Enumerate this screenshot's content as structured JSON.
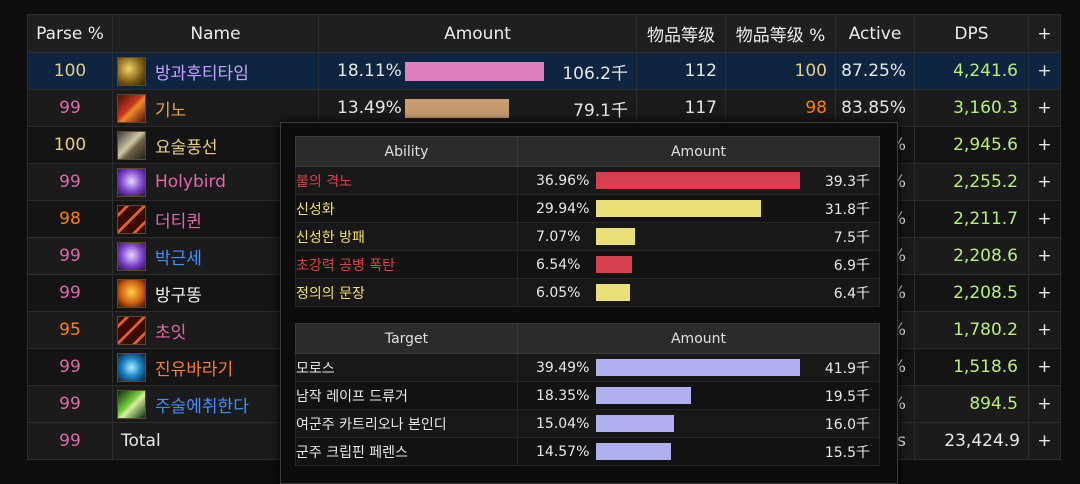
{
  "columns": {
    "parse": "Parse %",
    "name": "Name",
    "amount": "Amount",
    "ilvl": "物品等级",
    "ilvl_pct": "物品等级 %",
    "active": "Active",
    "dps": "DPS",
    "add": "+"
  },
  "rows": [
    {
      "parse": "100",
      "name": "방과후티타임",
      "pct": "18.11%",
      "bar": 0.966,
      "amount": "106.2千",
      "ilvl": "112",
      "ilvl_pct": "100",
      "active": "87.25%",
      "dps": "4,241.6",
      "plus": "+",
      "icon": "class-icon",
      "icon_style": "gold",
      "name_color": "#c8a0ff",
      "parse_color": "#e5cc80",
      "ilvl_pct_color": "#e5cc80",
      "bar_color": "#e07fbe"
    },
    {
      "parse": "99",
      "name": "기노",
      "pct": "13.49%",
      "bar": 0.72,
      "amount": "79.1千",
      "ilvl": "117",
      "ilvl_pct": "98",
      "active": "83.85%",
      "dps": "3,160.3",
      "plus": "+",
      "icon": "class-icon",
      "icon_style": "red",
      "name_color": "#e0a050",
      "parse_color": "#e268a8",
      "ilvl_pct_color": "#ff8000",
      "bar_color": "#c79c6e"
    },
    {
      "parse": "100",
      "name": "요술풍선",
      "active_tail": "%",
      "dps": "2,945.6",
      "plus": "+",
      "icon": "class-icon",
      "icon_style": "steel",
      "name_color": "#e5cc80",
      "parse_color": "#e5cc80"
    },
    {
      "parse": "99",
      "name": "Holybird",
      "active_tail": "%",
      "dps": "2,255.2",
      "plus": "+",
      "icon": "class-icon",
      "icon_style": "purple",
      "name_color": "#e268a8",
      "parse_color": "#e268a8"
    },
    {
      "parse": "98",
      "name": "더티퀸",
      "active_tail": "%",
      "dps": "2,211.7",
      "plus": "+",
      "icon": "class-icon",
      "icon_style": "slash",
      "name_color": "#e268a8",
      "parse_color": "#ff8000"
    },
    {
      "parse": "99",
      "name": "박근세",
      "active_tail": "%",
      "dps": "2,208.6",
      "plus": "+",
      "icon": "class-icon",
      "icon_style": "purple",
      "name_color": "#3f8fff",
      "parse_color": "#e268a8"
    },
    {
      "parse": "99",
      "name": "방구똥",
      "active_tail": "%",
      "dps": "2,208.5",
      "plus": "+",
      "icon": "class-icon",
      "icon_style": "skull",
      "name_color": "#f0f0f0",
      "parse_color": "#e268a8"
    },
    {
      "parse": "95",
      "name": "초잇",
      "active_tail": "%",
      "dps": "1,780.2",
      "plus": "+",
      "icon": "class-icon",
      "icon_style": "slash",
      "name_color": "#e268a8",
      "parse_color": "#ff8000"
    },
    {
      "parse": "99",
      "name": "진유바라기",
      "active_tail": "%",
      "dps": "1,518.6",
      "plus": "+",
      "icon": "class-icon",
      "icon_style": "blue",
      "name_color": "#ff7d2a",
      "parse_color": "#e268a8"
    },
    {
      "parse": "99",
      "name": "주술에취한다",
      "active_tail": "%",
      "dps": "894.5",
      "plus": "+",
      "icon": "class-icon",
      "icon_style": "green",
      "name_color": "#3f8fff",
      "parse_color": "#e268a8"
    }
  ],
  "total": {
    "parse": "99",
    "name": "Total",
    "active_tail": "0s",
    "dps": "23,424.9",
    "plus": "+",
    "parse_color": "#e268a8"
  },
  "ability_table": {
    "headers": {
      "name": "Ability",
      "amount": "Amount"
    },
    "rows": [
      {
        "name": "불의 격노",
        "pct": "36.96%",
        "bar": 1.0,
        "amount": "39.3千",
        "color": "#e0404a",
        "bar_color": "#d6404e"
      },
      {
        "name": "신성화",
        "pct": "29.94%",
        "bar": 0.81,
        "amount": "31.8千",
        "color": "#f0e068",
        "bar_color": "#eae078"
      },
      {
        "name": "신성한 방패",
        "pct": "7.07%",
        "bar": 0.19,
        "amount": "7.5千",
        "color": "#f0e068",
        "bar_color": "#eae078"
      },
      {
        "name": "초강력 공병 폭탄",
        "pct": "6.54%",
        "bar": 0.175,
        "amount": "6.9千",
        "color": "#e0404a",
        "bar_color": "#d6404e"
      },
      {
        "name": "정의의 문장",
        "pct": "6.05%",
        "bar": 0.165,
        "amount": "6.4千",
        "color": "#f0e068",
        "bar_color": "#eae078"
      }
    ]
  },
  "target_table": {
    "headers": {
      "name": "Target",
      "amount": "Amount"
    },
    "rows": [
      {
        "name": "모로스",
        "pct": "39.49%",
        "bar": 1.0,
        "amount": "41.9千",
        "color": "#e8e8e8",
        "bar_color": "#b0b0f0"
      },
      {
        "name": "남작 레이프 드류거",
        "pct": "18.35%",
        "bar": 0.465,
        "amount": "19.5千",
        "color": "#e8e8e8",
        "bar_color": "#b0b0f0"
      },
      {
        "name": "여군주 카트리오나 본인디",
        "pct": "15.04%",
        "bar": 0.38,
        "amount": "16.0千",
        "color": "#e8e8e8",
        "bar_color": "#b0b0f0"
      },
      {
        "name": "군주 크립핀 페렌스",
        "pct": "14.57%",
        "bar": 0.37,
        "amount": "15.5千",
        "color": "#e8e8e8",
        "bar_color": "#b0b0f0"
      }
    ]
  }
}
